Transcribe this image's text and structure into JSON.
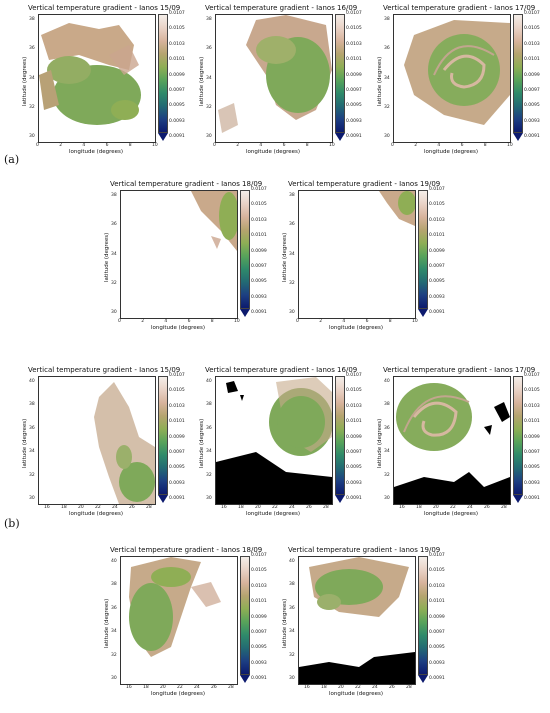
{
  "group_labels": {
    "a": "(a)",
    "b": "(b)"
  },
  "axes": {
    "xlabel": "longitude (degrees)",
    "ylabel": "latitude (degrees)"
  },
  "colorbar_ticks": [
    "0.0107",
    "0.0105",
    "0.0103",
    "0.0101",
    "0.0099",
    "0.0097",
    "0.0095",
    "0.0093",
    "0.0091"
  ],
  "colormap": [
    "#f4eee9",
    "#e9d2c6",
    "#d7b39c",
    "#b5a46f",
    "#8fae55",
    "#58a35a",
    "#2f8a6a",
    "#236a73",
    "#1d3f82",
    "#0c1a6e"
  ],
  "panels": [
    {
      "title": "Vertical temperature gradient - Ianos 15/09",
      "xticks": [
        "0",
        "2",
        "4",
        "6",
        "8",
        "10"
      ],
      "yticks": [
        "38",
        "36",
        "34",
        "32",
        "30"
      ]
    },
    {
      "title": "Vertical temperature gradient - Ianos 16/09",
      "xticks": [
        "0",
        "2",
        "4",
        "6",
        "8",
        "10"
      ],
      "yticks": [
        "38",
        "36",
        "34",
        "32",
        "30"
      ]
    },
    {
      "title": "Vertical temperature gradient - Ianos 17/09",
      "xticks": [
        "0",
        "2",
        "4",
        "6",
        "8",
        "10"
      ],
      "yticks": [
        "38",
        "36",
        "34",
        "32",
        "30"
      ]
    },
    {
      "title": "Vertical temperature gradient - Ianos 18/09",
      "xticks": [
        "0",
        "2",
        "4",
        "6",
        "8",
        "10"
      ],
      "yticks": [
        "38",
        "36",
        "34",
        "32",
        "30"
      ]
    },
    {
      "title": "Vertical temperature gradient - Ianos 19/09",
      "xticks": [
        "0",
        "2",
        "4",
        "6",
        "8",
        "10"
      ],
      "yticks": [
        "38",
        "36",
        "34",
        "32",
        "30"
      ]
    },
    {
      "title": "Vertical temperature gradient - Ianos 15/09",
      "xticks": [
        "16",
        "18",
        "20",
        "22",
        "24",
        "26",
        "28"
      ],
      "yticks": [
        "40",
        "38",
        "36",
        "34",
        "32",
        "30"
      ]
    },
    {
      "title": "Vertical temperature gradient - Ianos 16/09",
      "xticks": [
        "16",
        "18",
        "20",
        "22",
        "24",
        "26",
        "28"
      ],
      "yticks": [
        "40",
        "38",
        "36",
        "34",
        "32",
        "30"
      ]
    },
    {
      "title": "Vertical temperature gradient - Ianos 17/09",
      "xticks": [
        "16",
        "18",
        "20",
        "22",
        "24",
        "26",
        "28"
      ],
      "yticks": [
        "40",
        "38",
        "36",
        "34",
        "32",
        "30"
      ]
    },
    {
      "title": "Vertical temperature gradient - Ianos 18/09",
      "xticks": [
        "16",
        "18",
        "20",
        "22",
        "24",
        "26",
        "28"
      ],
      "yticks": [
        "40",
        "38",
        "36",
        "34",
        "32",
        "30"
      ]
    },
    {
      "title": "Vertical temperature gradient - Ianos 19/09",
      "xticks": [
        "16",
        "18",
        "20",
        "22",
        "24",
        "26",
        "28"
      ],
      "yticks": [
        "40",
        "38",
        "36",
        "34",
        "32",
        "30"
      ]
    }
  ]
}
